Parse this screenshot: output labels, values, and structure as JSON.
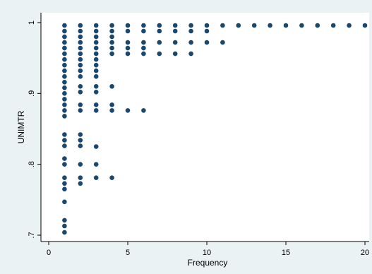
{
  "colors": {
    "background": "#eaf2f3",
    "plot_area": "#ffffff",
    "marker": "#1a476f",
    "axis": "#000000"
  },
  "chart_data": {
    "type": "scatter",
    "title": "",
    "xlabel": "Frequency",
    "ylabel": "UNIMTR",
    "xlim": [
      0,
      20
    ],
    "ylim": [
      0.7,
      1.0
    ],
    "x_ticks": [
      0,
      5,
      10,
      15,
      20
    ],
    "x_tick_labels": [
      "0",
      "5",
      "10",
      "15",
      "20"
    ],
    "y_ticks": [
      0.7,
      0.8,
      0.9,
      1.0
    ],
    "y_tick_labels": [
      ".7",
      ".8",
      ".9",
      "1"
    ],
    "grid": false,
    "legend": "none",
    "series": [
      {
        "points": [
          [
            1,
            0.996
          ],
          [
            1,
            0.988
          ],
          [
            1,
            0.98
          ],
          [
            1,
            0.972
          ],
          [
            1,
            0.964
          ],
          [
            1,
            0.956
          ],
          [
            1,
            0.948
          ],
          [
            1,
            0.94
          ],
          [
            1,
            0.932
          ],
          [
            1,
            0.924
          ],
          [
            1,
            0.916
          ],
          [
            1,
            0.908
          ],
          [
            1,
            0.9
          ],
          [
            1,
            0.892
          ],
          [
            1,
            0.884
          ],
          [
            1,
            0.876
          ],
          [
            1,
            0.868
          ],
          [
            1,
            0.842
          ],
          [
            1,
            0.834
          ],
          [
            1,
            0.826
          ],
          [
            1,
            0.808
          ],
          [
            1,
            0.8
          ],
          [
            1,
            0.781
          ],
          [
            1,
            0.773
          ],
          [
            1,
            0.765
          ],
          [
            1,
            0.747
          ],
          [
            1,
            0.721
          ],
          [
            1,
            0.713
          ],
          [
            1,
            0.704
          ],
          [
            2,
            0.996
          ],
          [
            2,
            0.988
          ],
          [
            2,
            0.98
          ],
          [
            2,
            0.972
          ],
          [
            2,
            0.964
          ],
          [
            2,
            0.956
          ],
          [
            2,
            0.948
          ],
          [
            2,
            0.94
          ],
          [
            2,
            0.932
          ],
          [
            2,
            0.924
          ],
          [
            2,
            0.91
          ],
          [
            2,
            0.902
          ],
          [
            2,
            0.884
          ],
          [
            2,
            0.876
          ],
          [
            2,
            0.842
          ],
          [
            2,
            0.834
          ],
          [
            2,
            0.826
          ],
          [
            2,
            0.8
          ],
          [
            2,
            0.781
          ],
          [
            2,
            0.773
          ],
          [
            3,
            0.996
          ],
          [
            3,
            0.988
          ],
          [
            3,
            0.98
          ],
          [
            3,
            0.972
          ],
          [
            3,
            0.964
          ],
          [
            3,
            0.956
          ],
          [
            3,
            0.948
          ],
          [
            3,
            0.94
          ],
          [
            3,
            0.932
          ],
          [
            3,
            0.924
          ],
          [
            3,
            0.91
          ],
          [
            3,
            0.902
          ],
          [
            3,
            0.884
          ],
          [
            3,
            0.876
          ],
          [
            3,
            0.825
          ],
          [
            3,
            0.8
          ],
          [
            3,
            0.781
          ],
          [
            4,
            0.996
          ],
          [
            4,
            0.988
          ],
          [
            4,
            0.98
          ],
          [
            4,
            0.972
          ],
          [
            4,
            0.964
          ],
          [
            4,
            0.956
          ],
          [
            4,
            0.91
          ],
          [
            4,
            0.884
          ],
          [
            4,
            0.876
          ],
          [
            4,
            0.781
          ],
          [
            5,
            0.996
          ],
          [
            5,
            0.988
          ],
          [
            5,
            0.972
          ],
          [
            5,
            0.964
          ],
          [
            5,
            0.956
          ],
          [
            5,
            0.876
          ],
          [
            6,
            0.996
          ],
          [
            6,
            0.988
          ],
          [
            6,
            0.972
          ],
          [
            6,
            0.964
          ],
          [
            6,
            0.956
          ],
          [
            6,
            0.876
          ],
          [
            7,
            0.996
          ],
          [
            7,
            0.988
          ],
          [
            7,
            0.972
          ],
          [
            7,
            0.956
          ],
          [
            8,
            0.996
          ],
          [
            8,
            0.988
          ],
          [
            8,
            0.972
          ],
          [
            8,
            0.956
          ],
          [
            9,
            0.996
          ],
          [
            9,
            0.988
          ],
          [
            9,
            0.972
          ],
          [
            9,
            0.956
          ],
          [
            10,
            0.996
          ],
          [
            10,
            0.988
          ],
          [
            10,
            0.972
          ],
          [
            11,
            0.996
          ],
          [
            11,
            0.972
          ],
          [
            12,
            0.996
          ],
          [
            13,
            0.996
          ],
          [
            14,
            0.996
          ],
          [
            15,
            0.996
          ],
          [
            16,
            0.996
          ],
          [
            17,
            0.996
          ],
          [
            18,
            0.996
          ],
          [
            19,
            0.996
          ],
          [
            20,
            0.996
          ]
        ]
      }
    ]
  }
}
